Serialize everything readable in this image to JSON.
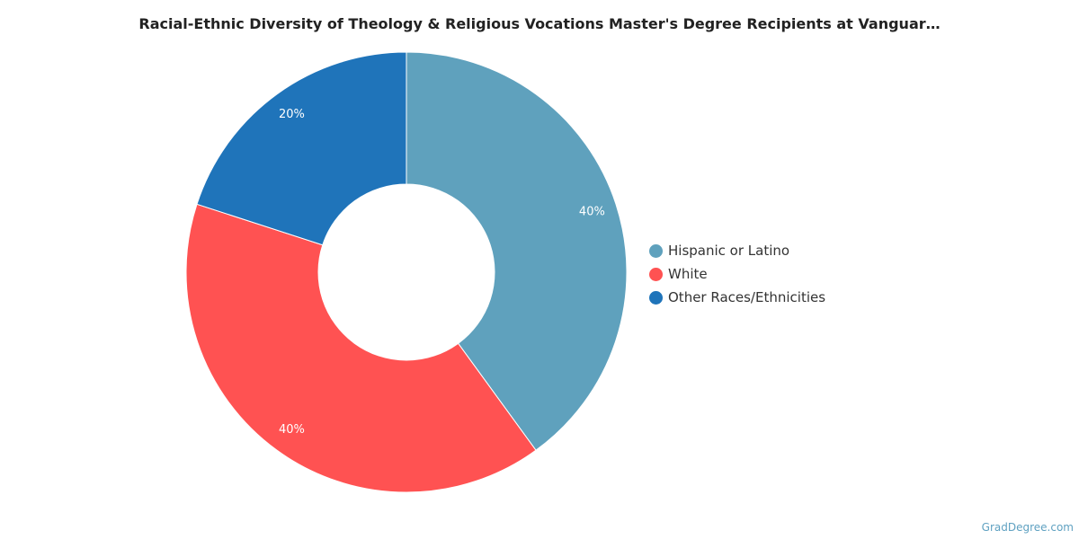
{
  "chart_data": {
    "type": "pie",
    "title": "Racial-Ethnic Diversity of Theology & Religious Vocations Master's Degree Recipients at Vanguar…",
    "categories": [
      "Hispanic or Latino",
      "White",
      "Other Races/Ethnicities"
    ],
    "values": [
      40,
      40,
      20
    ],
    "data_labels": [
      "40%",
      "40%",
      "20%"
    ],
    "colors": [
      "#5fa1bd",
      "#ff5252",
      "#1f74ba"
    ],
    "legend_position": "right",
    "donut": true
  },
  "footer": {
    "credit": "GradDegree.com"
  }
}
